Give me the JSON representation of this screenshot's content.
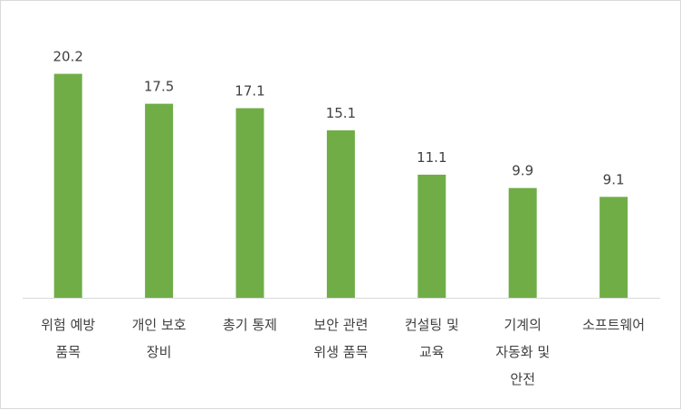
{
  "chart_data": {
    "type": "bar",
    "title": "",
    "xlabel": "",
    "ylabel": "",
    "categories": [
      [
        "위험 예방",
        "품목"
      ],
      [
        "개인 보호",
        "장비"
      ],
      [
        "총기 통제"
      ],
      [
        "보안 관련",
        "위생 품목"
      ],
      [
        "컨설팅 및",
        "교육"
      ],
      [
        "기계의",
        "자동화 및",
        "안전"
      ],
      [
        "소프트웨어"
      ]
    ],
    "values": [
      20.2,
      17.5,
      17.1,
      15.1,
      11.1,
      9.9,
      9.1
    ],
    "value_labels": [
      "20.2",
      "17.5",
      "17.1",
      "15.1",
      "11.1",
      "9.9",
      "9.1"
    ],
    "ylim": [
      0,
      22
    ],
    "grid": false,
    "legend": "none",
    "bar_color": "#70ad47",
    "axis_color": "#d9d9d9",
    "text_color": "#404040"
  }
}
